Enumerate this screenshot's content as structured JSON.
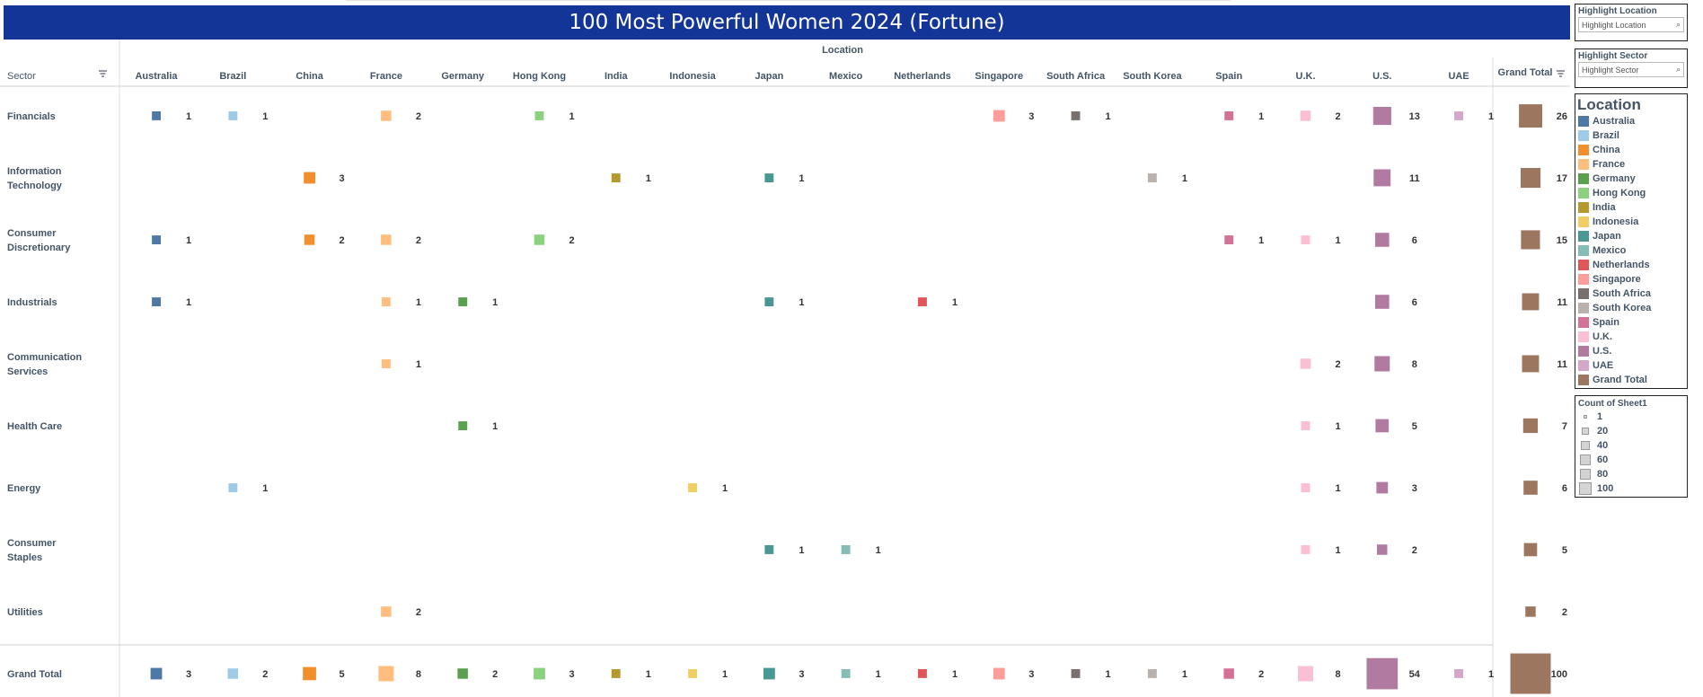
{
  "header": {
    "title": "100 Most Powerful Women 2024 (Fortune)"
  },
  "filters": {
    "location": {
      "label": "Highlight Location",
      "placeholder": "Highlight Location"
    },
    "sector": {
      "label": "Highlight Sector",
      "placeholder": "Highlight Sector"
    }
  },
  "legend": {
    "title": "Location",
    "items": [
      {
        "name": "Australia",
        "color": "#4e79a7"
      },
      {
        "name": "Brazil",
        "color": "#a0cbe8"
      },
      {
        "name": "China",
        "color": "#f28e2b"
      },
      {
        "name": "France",
        "color": "#ffbe7d"
      },
      {
        "name": "Germany",
        "color": "#59a14f"
      },
      {
        "name": "Hong Kong",
        "color": "#8cd17d"
      },
      {
        "name": "India",
        "color": "#b6992d"
      },
      {
        "name": "Indonesia",
        "color": "#f1ce63"
      },
      {
        "name": "Japan",
        "color": "#499894"
      },
      {
        "name": "Mexico",
        "color": "#86bcb6"
      },
      {
        "name": "Netherlands",
        "color": "#e15759"
      },
      {
        "name": "Singapore",
        "color": "#ff9d9a"
      },
      {
        "name": "South Africa",
        "color": "#79706e"
      },
      {
        "name": "South Korea",
        "color": "#bab0ac"
      },
      {
        "name": "Spain",
        "color": "#d37295"
      },
      {
        "name": "U.K.",
        "color": "#fabfd2"
      },
      {
        "name": "U.S.",
        "color": "#b07aa1"
      },
      {
        "name": "UAE",
        "color": "#d4a6c8"
      },
      {
        "name": "Grand Total",
        "color": "#9d7660"
      }
    ]
  },
  "size_legend": {
    "title": "Count of Sheet1",
    "values": [
      1,
      20,
      40,
      60,
      80,
      100
    ],
    "labels": [
      "1",
      "20",
      "40",
      "60",
      "80",
      "100"
    ]
  },
  "chart_data": {
    "type": "table",
    "column_header": "Location",
    "row_header": "Sector",
    "columns": [
      "Australia",
      "Brazil",
      "China",
      "France",
      "Germany",
      "Hong Kong",
      "India",
      "Indonesia",
      "Japan",
      "Mexico",
      "Netherlands",
      "Singapore",
      "South Africa",
      "South Korea",
      "Spain",
      "U.K.",
      "U.S.",
      "UAE"
    ],
    "total_label": "Grand Total",
    "rows": [
      {
        "sector": "Financials",
        "values": [
          1,
          1,
          null,
          2,
          null,
          1,
          null,
          null,
          null,
          null,
          null,
          3,
          1,
          null,
          1,
          2,
          13,
          1
        ],
        "total": 26
      },
      {
        "sector": "Information Technology",
        "values": [
          null,
          null,
          3,
          null,
          null,
          null,
          1,
          null,
          1,
          null,
          null,
          null,
          null,
          1,
          null,
          null,
          11,
          null
        ],
        "total": 17
      },
      {
        "sector": "Consumer Discretionary",
        "values": [
          1,
          null,
          2,
          2,
          null,
          2,
          null,
          null,
          null,
          null,
          null,
          null,
          null,
          null,
          1,
          1,
          6,
          null
        ],
        "total": 15
      },
      {
        "sector": "Industrials",
        "values": [
          1,
          null,
          null,
          1,
          1,
          null,
          null,
          null,
          1,
          null,
          1,
          null,
          null,
          null,
          null,
          null,
          6,
          null
        ],
        "total": 11
      },
      {
        "sector": "Communication Services",
        "values": [
          null,
          null,
          null,
          1,
          null,
          null,
          null,
          null,
          null,
          null,
          null,
          null,
          null,
          null,
          null,
          2,
          8,
          null
        ],
        "total": 11
      },
      {
        "sector": "Health Care",
        "values": [
          null,
          null,
          null,
          null,
          1,
          null,
          null,
          null,
          null,
          null,
          null,
          null,
          null,
          null,
          null,
          1,
          5,
          null
        ],
        "total": 7
      },
      {
        "sector": "Energy",
        "values": [
          null,
          1,
          null,
          null,
          null,
          null,
          null,
          1,
          null,
          null,
          null,
          null,
          null,
          null,
          null,
          1,
          3,
          null
        ],
        "total": 6
      },
      {
        "sector": "Consumer Staples",
        "values": [
          null,
          null,
          null,
          null,
          null,
          null,
          null,
          null,
          1,
          1,
          null,
          null,
          null,
          null,
          null,
          1,
          2,
          null
        ],
        "total": 5
      },
      {
        "sector": "Utilities",
        "values": [
          null,
          null,
          null,
          2,
          null,
          null,
          null,
          null,
          null,
          null,
          null,
          null,
          null,
          null,
          null,
          null,
          null,
          null
        ],
        "total": 2
      }
    ],
    "grand_total_row": {
      "sector": "Grand Total",
      "values": [
        3,
        2,
        5,
        8,
        2,
        3,
        1,
        1,
        3,
        1,
        1,
        3,
        1,
        1,
        2,
        8,
        54,
        1
      ],
      "total": 100
    }
  }
}
